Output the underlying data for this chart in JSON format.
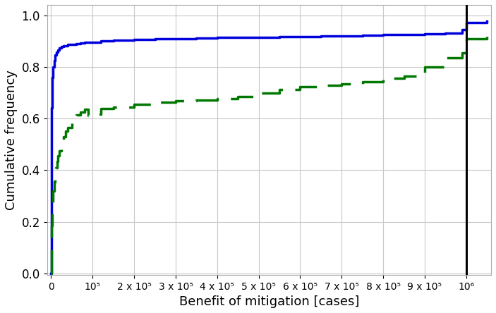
{
  "xlabel": "Benefit of mitigation [cases]",
  "ylabel": "Cumulative frequency",
  "xlim": [
    -10000,
    1060000
  ],
  "ylim": [
    -0.005,
    1.04
  ],
  "yticks": [
    0.0,
    0.2,
    0.4,
    0.6,
    0.8,
    1.0
  ],
  "xticks": [
    0,
    100000,
    200000,
    300000,
    400000,
    500000,
    600000,
    700000,
    800000,
    900000,
    1000000
  ],
  "xtick_labels": [
    "0",
    "10⁵",
    "2 x 10⁵",
    "3 x 10⁵",
    "4 x 10⁵",
    "5 x 10⁵",
    "6 x 10⁵",
    "7 x 10⁵",
    "8 x 10⁵",
    "9 x 10⁵",
    "10⁶"
  ],
  "vline_x": 1000000,
  "vline_color": "#000000",
  "vline_lw": 2.2,
  "blue_line_color": "#0000dd",
  "blue_line_lw": 2.5,
  "green_line_color": "#007700",
  "green_line_lw": 2.5,
  "blue_x": [
    0,
    200,
    500,
    1000,
    2000,
    3000,
    5000,
    7000,
    10000,
    13000,
    16000,
    20000,
    25000,
    30000,
    40000,
    50000,
    60000,
    70000,
    80000,
    90000,
    100000,
    120000,
    150000,
    200000,
    250000,
    300000,
    350000,
    400000,
    450000,
    500000,
    550000,
    580000,
    600000,
    650000,
    700000,
    750000,
    800000,
    850000,
    900000,
    950000,
    990000,
    1000000,
    1050000
  ],
  "blue_y": [
    0.0,
    0.17,
    0.5,
    0.64,
    0.72,
    0.76,
    0.8,
    0.825,
    0.845,
    0.858,
    0.866,
    0.872,
    0.878,
    0.882,
    0.886,
    0.888,
    0.89,
    0.892,
    0.894,
    0.895,
    0.896,
    0.9,
    0.903,
    0.907,
    0.909,
    0.91,
    0.912,
    0.913,
    0.914,
    0.915,
    0.916,
    0.917,
    0.918,
    0.919,
    0.92,
    0.922,
    0.924,
    0.926,
    0.929,
    0.932,
    0.943,
    0.972,
    0.977
  ],
  "green_x": [
    0,
    500,
    1000,
    2000,
    3000,
    5000,
    7000,
    9000,
    11000,
    14000,
    17000,
    20000,
    25000,
    30000,
    35000,
    40000,
    50000,
    60000,
    70000,
    80000,
    90000,
    100000,
    120000,
    150000,
    200000,
    250000,
    300000,
    350000,
    400000,
    450000,
    500000,
    550000,
    600000,
    650000,
    700000,
    750000,
    800000,
    850000,
    900000,
    950000,
    990000,
    1000000,
    1050000
  ],
  "green_y": [
    0.0,
    0.135,
    0.185,
    0.235,
    0.275,
    0.32,
    0.355,
    0.385,
    0.41,
    0.435,
    0.455,
    0.475,
    0.505,
    0.53,
    0.55,
    0.565,
    0.595,
    0.613,
    0.625,
    0.635,
    0.612,
    0.618,
    0.638,
    0.645,
    0.655,
    0.663,
    0.668,
    0.672,
    0.678,
    0.685,
    0.7,
    0.712,
    0.722,
    0.73,
    0.735,
    0.742,
    0.755,
    0.765,
    0.8,
    0.835,
    0.855,
    0.91,
    0.92
  ],
  "background_color": "#ffffff",
  "grid_color": "#c8c8c8",
  "figsize": [
    7.03,
    4.44
  ],
  "dpi": 100
}
